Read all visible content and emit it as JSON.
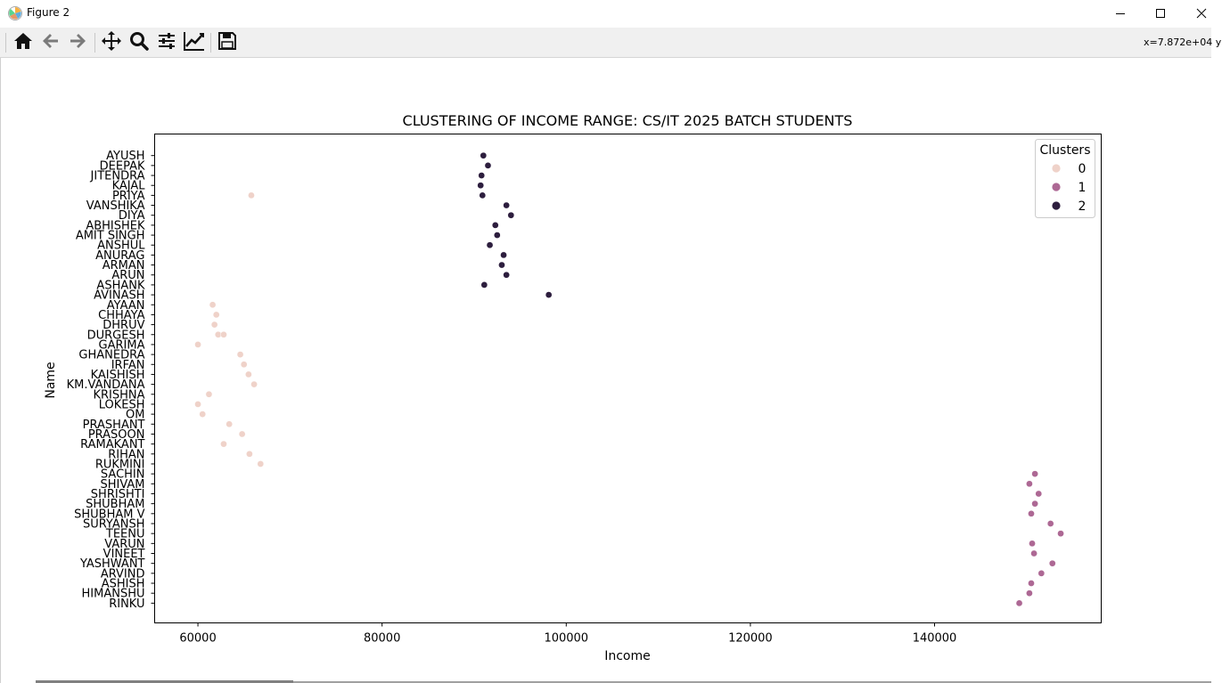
{
  "window": {
    "title": "Figure 2",
    "minimize_icon": "minimize-icon",
    "maximize_icon": "maximize-icon",
    "close_icon": "close-icon"
  },
  "toolbar": {
    "items": [
      {
        "name": "home-icon",
        "tooltip": "Home"
      },
      {
        "name": "back-arrow-icon",
        "tooltip": "Back"
      },
      {
        "name": "forward-arrow-icon",
        "tooltip": "Forward"
      },
      {
        "name": "pan-move-icon",
        "tooltip": "Pan"
      },
      {
        "name": "zoom-magnifier-icon",
        "tooltip": "Zoom"
      },
      {
        "name": "configure-subplots-icon",
        "tooltip": "Subplots"
      },
      {
        "name": "edit-axis-icon",
        "tooltip": "Customize"
      },
      {
        "name": "save-floppy-icon",
        "tooltip": "Save"
      }
    ],
    "coords_text": "x=7.872e+04 y"
  },
  "colors": {
    "cluster_0": "#efd2c9",
    "cluster_1": "#ad6894",
    "cluster_2": "#2d1e3e",
    "toolbar_bg": "#f0f0f0"
  },
  "chart_data": {
    "type": "scatter",
    "title": "CLUSTERING OF INCOME RANGE: CS/IT 2025 BATCH STUDENTS",
    "xlabel": "Income",
    "ylabel": "Name",
    "xlim": [
      55300,
      158100
    ],
    "xticks": [
      60000,
      80000,
      100000,
      120000,
      140000
    ],
    "xtick_labels": [
      "60000",
      "80000",
      "100000",
      "120000",
      "140000"
    ],
    "grid": false,
    "legend": {
      "title": "Clusters",
      "position": "top-right",
      "entries": [
        "0",
        "1",
        "2"
      ]
    },
    "categories": [
      "AYUSH",
      "DEEPAK",
      "JITENDRA",
      "KAJAL",
      "PRIYA",
      "VANSHIKA",
      "DIYA",
      "ABHISHEK",
      "AMIT SINGH",
      "ANSHUL",
      "ANURAG",
      "ARMAN",
      "ARUN",
      "ASHANK",
      "AVINASH",
      "AYAAN",
      "CHHAYA",
      "DHRUV",
      "DURGESH",
      "GARIMA",
      "GHANEDRA",
      "IRFAN",
      "KAISHISH",
      "KM.VANDANA",
      "KRISHNA",
      "LOKESH",
      "OM",
      "PRASHANT",
      "PRASOON",
      "RAMAKANT",
      "RIHAN",
      "RUKMINI",
      "SACHIN",
      "SHIVAM",
      "SHRISHTI",
      "SHUBHAM",
      "SHUBHAM V",
      "SURYANSH",
      "TEENU",
      "VARUN",
      "VINEET",
      "YASHWANT",
      "ARVIND",
      "ASHISH",
      "HIMANSHU",
      "RINKU"
    ],
    "points": [
      {
        "name": "AYUSH",
        "income": 91000,
        "cluster": 2
      },
      {
        "name": "DEEPAK",
        "income": 91500,
        "cluster": 2
      },
      {
        "name": "JITENDRA",
        "income": 90800,
        "cluster": 2
      },
      {
        "name": "KAJAL",
        "income": 90700,
        "cluster": 2
      },
      {
        "name": "PRIYA",
        "income": 90900,
        "cluster": 2
      },
      {
        "name": "PRIYA",
        "income": 65800,
        "cluster": 0
      },
      {
        "name": "VANSHIKA",
        "income": 93500,
        "cluster": 2
      },
      {
        "name": "DIYA",
        "income": 94000,
        "cluster": 2
      },
      {
        "name": "ABHISHEK",
        "income": 92300,
        "cluster": 2
      },
      {
        "name": "AMIT SINGH",
        "income": 92500,
        "cluster": 2
      },
      {
        "name": "ANSHUL",
        "income": 91700,
        "cluster": 2
      },
      {
        "name": "ANURAG",
        "income": 93200,
        "cluster": 2
      },
      {
        "name": "ARMAN",
        "income": 93000,
        "cluster": 2
      },
      {
        "name": "ARUN",
        "income": 93500,
        "cluster": 2
      },
      {
        "name": "ASHANK",
        "income": 91100,
        "cluster": 2
      },
      {
        "name": "AVINASH",
        "income": 98100,
        "cluster": 2
      },
      {
        "name": "AYAAN",
        "income": 61600,
        "cluster": 0
      },
      {
        "name": "CHHAYA",
        "income": 62000,
        "cluster": 0
      },
      {
        "name": "DHRUV",
        "income": 61800,
        "cluster": 0
      },
      {
        "name": "DURGESH",
        "income": 62200,
        "cluster": 0
      },
      {
        "name": "DURGESH",
        "income": 62800,
        "cluster": 0
      },
      {
        "name": "GARIMA",
        "income": 60000,
        "cluster": 0
      },
      {
        "name": "GHANEDRA",
        "income": 64600,
        "cluster": 0
      },
      {
        "name": "IRFAN",
        "income": 65000,
        "cluster": 0
      },
      {
        "name": "KAISHISH",
        "income": 65500,
        "cluster": 0
      },
      {
        "name": "KM.VANDANA",
        "income": 66100,
        "cluster": 0
      },
      {
        "name": "KRISHNA",
        "income": 61200,
        "cluster": 0
      },
      {
        "name": "LOKESH",
        "income": 60000,
        "cluster": 0
      },
      {
        "name": "OM",
        "income": 60500,
        "cluster": 0
      },
      {
        "name": "PRASHANT",
        "income": 63400,
        "cluster": 0
      },
      {
        "name": "PRASOON",
        "income": 64800,
        "cluster": 0
      },
      {
        "name": "RAMAKANT",
        "income": 62800,
        "cluster": 0
      },
      {
        "name": "RIHAN",
        "income": 65600,
        "cluster": 0
      },
      {
        "name": "RUKMINI",
        "income": 66800,
        "cluster": 0
      },
      {
        "name": "SACHIN",
        "income": 150900,
        "cluster": 1
      },
      {
        "name": "SHIVAM",
        "income": 150300,
        "cluster": 1
      },
      {
        "name": "SHRISHTI",
        "income": 151300,
        "cluster": 1
      },
      {
        "name": "SHUBHAM",
        "income": 150900,
        "cluster": 1
      },
      {
        "name": "SHUBHAM V",
        "income": 150500,
        "cluster": 1
      },
      {
        "name": "SURYANSH",
        "income": 152600,
        "cluster": 1
      },
      {
        "name": "TEENU",
        "income": 153700,
        "cluster": 1
      },
      {
        "name": "VARUN",
        "income": 150600,
        "cluster": 1
      },
      {
        "name": "VINEET",
        "income": 150800,
        "cluster": 1
      },
      {
        "name": "YASHWANT",
        "income": 152800,
        "cluster": 1
      },
      {
        "name": "ARVIND",
        "income": 151600,
        "cluster": 1
      },
      {
        "name": "ASHISH",
        "income": 150500,
        "cluster": 1
      },
      {
        "name": "HIMANSHU",
        "income": 150300,
        "cluster": 1
      },
      {
        "name": "RINKU",
        "income": 149200,
        "cluster": 1
      }
    ]
  }
}
